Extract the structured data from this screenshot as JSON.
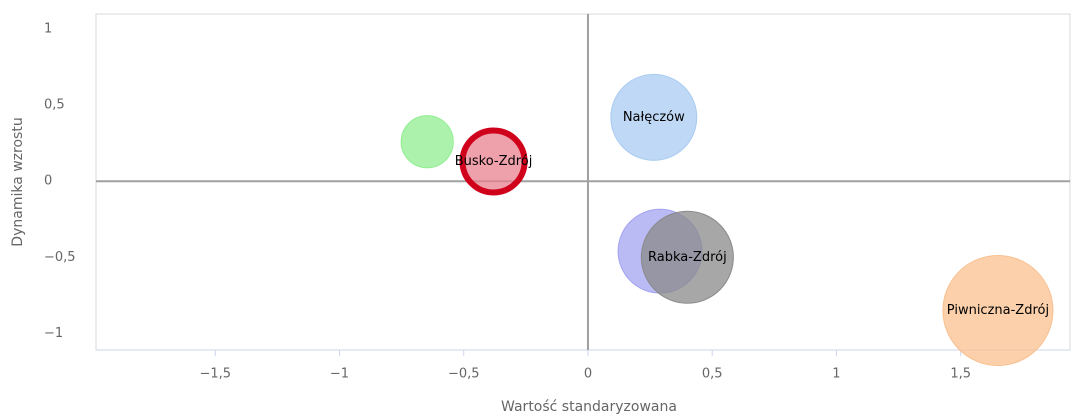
{
  "chart_data": {
    "type": "bubble",
    "x_label": "Wartość standaryzowana",
    "y_label": "Dynamika wzrostu",
    "xlim": [
      -1.98,
      1.94
    ],
    "ylim": [
      -1.11,
      1.1
    ],
    "xticks": [
      {
        "value": -1.5,
        "label": "−1,5"
      },
      {
        "value": -1,
        "label": "−1"
      },
      {
        "value": -0.5,
        "label": "−0,5"
      },
      0,
      {
        "value": 0.5,
        "label": "0,5"
      },
      1,
      {
        "value": 1.5,
        "label": "1,5"
      }
    ],
    "yticks": [
      {
        "value": -1,
        "label": "−1"
      },
      {
        "value": -0.5,
        "label": "−0,5"
      },
      0,
      {
        "value": 0.5,
        "label": "0,5"
      },
      1
    ],
    "points": [
      {
        "name": null,
        "x": -0.647,
        "y": 0.26,
        "size": 6.8,
        "color": "#90ee90"
      },
      {
        "name": "Busko-Zdrój",
        "x": -0.38,
        "y": 0.13,
        "size": 11.6,
        "color": "#e8808f",
        "border": "#d0021b"
      },
      {
        "name": "Nałęczów",
        "x": 0.265,
        "y": 0.42,
        "size": 18.5,
        "color": "#a9cbf2"
      },
      {
        "name": null,
        "x": 0.29,
        "y": -0.46,
        "size": 17.6,
        "color": "#a3a3f0"
      },
      {
        "name": "Rabka-Zdrój",
        "x": 0.4,
        "y": -0.5,
        "size": 21.2,
        "color": "#8a8a8a"
      },
      {
        "name": "Piwniczna-Zdrój",
        "x": 1.65,
        "y": -0.85,
        "size": 30.3,
        "color": "#f9c08f"
      }
    ]
  }
}
